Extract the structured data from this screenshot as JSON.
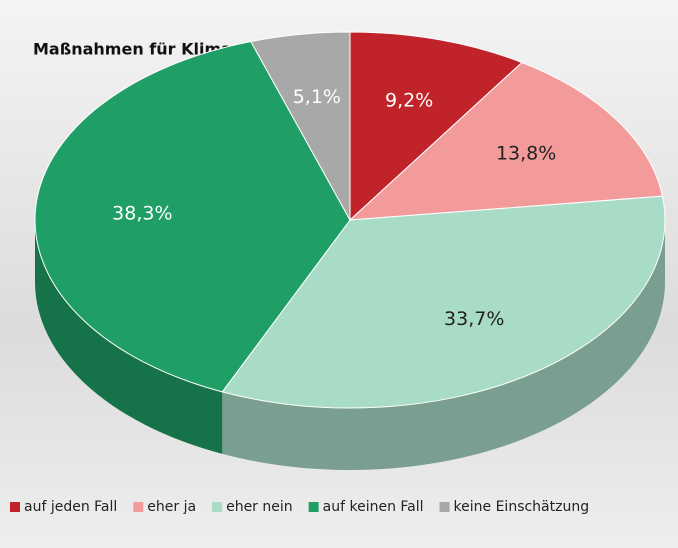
{
  "chart_data": {
    "type": "pie3d",
    "title": "Maßnahmen für Klima- und Umweltschutz",
    "categories": [
      "auf jeden Fall",
      "eher ja",
      "eher nein",
      "auf keinen Fall",
      "keine Einschätzung"
    ],
    "values": [
      9.2,
      13.8,
      33.7,
      38.3,
      5.1
    ],
    "value_labels": [
      "9,2%",
      "13,8%",
      "33,7%",
      "38,3%",
      "5,1%"
    ],
    "colors": [
      "#c1232b",
      "#f39a9b",
      "#a9dcc6",
      "#1f9e66",
      "#a8a8a8"
    ],
    "legend": "bottom"
  }
}
